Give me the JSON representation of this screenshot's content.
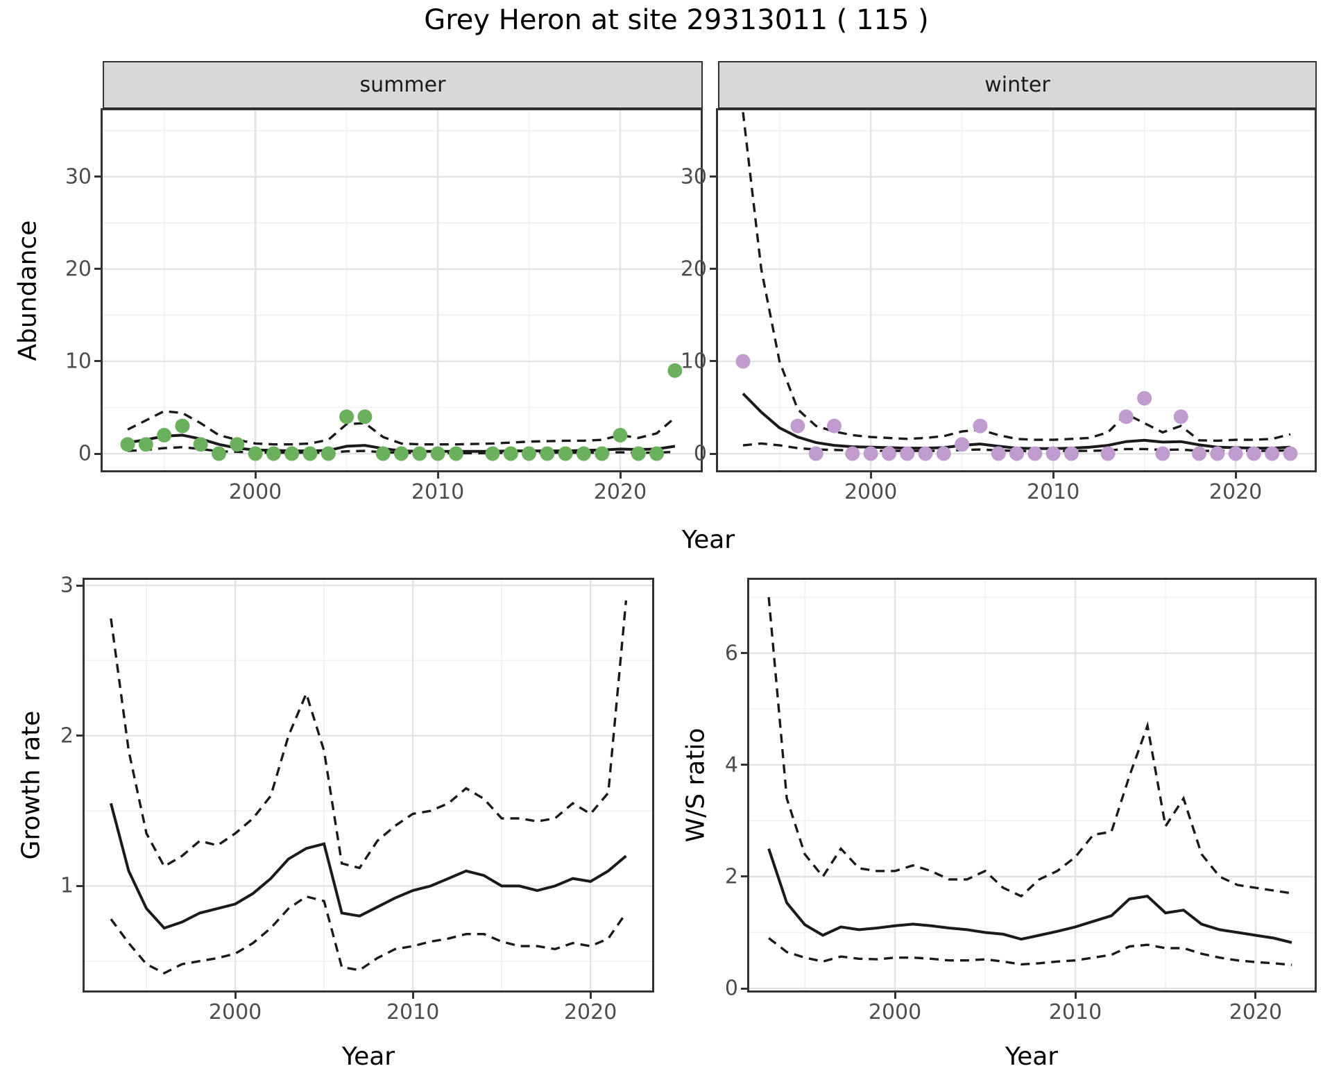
{
  "title": "Grey Heron at site 29313011 ( 115 )",
  "labels": {
    "abundance": "Abundance",
    "year": "Year",
    "growth_rate": "Growth rate",
    "ws_ratio": "W/S ratio"
  },
  "colors": {
    "summer_point": "#6BB05C",
    "winter_point": "#C09CCE",
    "line": "#1a1a1a",
    "grid_major": "#e3e3e3",
    "grid_minor": "#f0f0f0",
    "panel_border": "#333333",
    "strip_fill": "#d8d8d8",
    "tick_text": "#4d4d4d",
    "title_text": "#000000"
  },
  "chart_data": [
    {
      "type": "scatter+line",
      "facet_label": "summer",
      "ylabel": "Abundance",
      "xlabel": "Year",
      "years": {
        "from": 1993,
        "to": 2023
      },
      "xticks": [
        2000,
        2010,
        2020
      ],
      "xminor": [
        1995,
        2005,
        2015
      ],
      "yticks": [
        0,
        10,
        20,
        30
      ],
      "yminor": [
        5,
        15,
        25,
        35
      ],
      "xlim": [
        1991.63,
        2024.41
      ],
      "ylim": [
        -1.8,
        37.2
      ],
      "point_color_key": "summer_point",
      "series": {
        "observed_points": [
          1,
          1,
          2,
          3,
          1,
          0,
          1,
          0,
          0,
          0,
          0,
          0,
          4,
          4,
          0,
          0,
          0,
          0,
          0,
          null,
          0,
          0,
          0,
          0,
          0,
          0,
          0,
          2,
          0,
          0,
          9
        ],
        "fit": [
          1.2,
          1.5,
          1.9,
          2.0,
          1.6,
          1.0,
          0.6,
          0.4,
          0.35,
          0.3,
          0.3,
          0.35,
          0.8,
          0.9,
          0.55,
          0.3,
          0.25,
          0.25,
          0.25,
          0.25,
          0.25,
          0.3,
          0.3,
          0.3,
          0.3,
          0.35,
          0.4,
          0.5,
          0.45,
          0.5,
          0.8
        ],
        "upper": [
          2.6,
          3.6,
          4.6,
          4.4,
          3.3,
          2.0,
          1.5,
          1.1,
          1.0,
          1.0,
          1.1,
          1.5,
          3.2,
          3.3,
          1.8,
          1.1,
          1.0,
          1.0,
          1.0,
          1.05,
          1.1,
          1.2,
          1.3,
          1.35,
          1.4,
          1.4,
          1.5,
          2.0,
          1.7,
          2.2,
          3.9
        ],
        "lower": [
          0.3,
          0.4,
          0.6,
          0.7,
          0.5,
          0.25,
          0.2,
          0.1,
          0.1,
          0.1,
          0.1,
          0.1,
          0.25,
          0.3,
          0.15,
          0.1,
          0.05,
          0.05,
          0.05,
          0.05,
          0.05,
          0.1,
          0.1,
          0.1,
          0.1,
          0.1,
          0.1,
          0.15,
          0.1,
          0.1,
          0.2
        ]
      }
    },
    {
      "type": "scatter+line",
      "facet_label": "winter",
      "ylabel": "Abundance",
      "xlabel": "Year",
      "years": {
        "from": 1993,
        "to": 2023
      },
      "xticks": [
        2000,
        2010,
        2020
      ],
      "xminor": [
        1995,
        2005,
        2015
      ],
      "yticks": [
        0,
        10,
        20,
        30
      ],
      "yminor": [
        5,
        15,
        25,
        35
      ],
      "xlim": [
        1991.63,
        2024.33
      ],
      "ylim": [
        -1.8,
        37.2
      ],
      "point_color_key": "winter_point",
      "series": {
        "observed_points": [
          10,
          null,
          null,
          3,
          0,
          3,
          0,
          0,
          0,
          0,
          0,
          0,
          1,
          3,
          0,
          0,
          0,
          0,
          0,
          null,
          0,
          4,
          6,
          0,
          4,
          0,
          0,
          0,
          0,
          0,
          0
        ],
        "fit": [
          6.5,
          4.5,
          2.8,
          1.8,
          1.2,
          0.9,
          0.75,
          0.7,
          0.65,
          0.6,
          0.6,
          0.65,
          0.9,
          1.05,
          0.8,
          0.6,
          0.55,
          0.55,
          0.6,
          0.7,
          0.9,
          1.3,
          1.45,
          1.25,
          1.3,
          0.95,
          0.7,
          0.65,
          0.6,
          0.6,
          0.7
        ],
        "upper": [
          37,
          20,
          10,
          4.8,
          3.0,
          2.4,
          2.0,
          1.8,
          1.7,
          1.6,
          1.7,
          1.9,
          2.4,
          2.6,
          2.0,
          1.6,
          1.5,
          1.5,
          1.6,
          1.7,
          2.3,
          4.3,
          3.3,
          2.3,
          3.0,
          1.45,
          1.4,
          1.5,
          1.5,
          1.6,
          2.1
        ],
        "lower": [
          0.9,
          1.1,
          0.9,
          0.6,
          0.45,
          0.4,
          0.35,
          0.3,
          0.3,
          0.3,
          0.3,
          0.3,
          0.4,
          0.45,
          0.35,
          0.3,
          0.25,
          0.25,
          0.3,
          0.3,
          0.35,
          0.5,
          0.5,
          0.4,
          0.45,
          0.3,
          0.3,
          0.3,
          0.3,
          0.3,
          0.35
        ]
      }
    },
    {
      "type": "line",
      "facet_label": null,
      "ylabel": "Growth rate",
      "xlabel": "Year",
      "years": {
        "from": 1993,
        "to": 2022
      },
      "xticks": [
        2000,
        2010,
        2020
      ],
      "xminor": [
        1995,
        2005,
        2015
      ],
      "yticks": [
        1,
        2,
        3
      ],
      "yminor": [
        0.5,
        1.5,
        2.5
      ],
      "xlim": [
        1991.52,
        2023.47
      ],
      "ylim": [
        0.305,
        3.037
      ],
      "point_color_key": null,
      "series": {
        "fit": [
          1.55,
          1.1,
          0.85,
          0.72,
          0.76,
          0.82,
          0.85,
          0.88,
          0.95,
          1.05,
          1.18,
          1.25,
          1.28,
          0.82,
          0.8,
          0.86,
          0.92,
          0.97,
          1.0,
          1.05,
          1.1,
          1.07,
          1.0,
          1.0,
          0.97,
          1.0,
          1.05,
          1.03,
          1.1,
          1.2
        ],
        "upper": [
          2.78,
          1.9,
          1.35,
          1.13,
          1.2,
          1.3,
          1.27,
          1.35,
          1.45,
          1.6,
          2.0,
          2.28,
          1.9,
          1.15,
          1.12,
          1.3,
          1.4,
          1.48,
          1.5,
          1.55,
          1.65,
          1.58,
          1.45,
          1.45,
          1.43,
          1.45,
          1.55,
          1.48,
          1.62,
          2.9
        ],
        "lower": [
          0.78,
          0.62,
          0.48,
          0.42,
          0.48,
          0.5,
          0.52,
          0.55,
          0.62,
          0.72,
          0.85,
          0.93,
          0.9,
          0.46,
          0.44,
          0.52,
          0.58,
          0.6,
          0.63,
          0.65,
          0.68,
          0.68,
          0.63,
          0.6,
          0.6,
          0.58,
          0.62,
          0.6,
          0.65,
          0.82
        ]
      }
    },
    {
      "type": "line",
      "facet_label": null,
      "ylabel": "W/S ratio",
      "xlabel": "Year",
      "years": {
        "from": 1993,
        "to": 2022
      },
      "xticks": [
        2000,
        2010,
        2020
      ],
      "xminor": [
        1995,
        2005,
        2015
      ],
      "yticks": [
        0,
        2,
        4,
        6
      ],
      "yminor": [
        1,
        3,
        5,
        7
      ],
      "xlim": [
        1991.92,
        2023.27
      ],
      "ylim": [
        -0.037,
        7.31
      ],
      "point_color_key": null,
      "series": {
        "fit": [
          2.5,
          1.53,
          1.14,
          0.95,
          1.1,
          1.05,
          1.08,
          1.12,
          1.15,
          1.12,
          1.08,
          1.05,
          1.0,
          0.97,
          0.88,
          0.95,
          1.02,
          1.1,
          1.2,
          1.3,
          1.6,
          1.65,
          1.35,
          1.4,
          1.15,
          1.05,
          1.0,
          0.95,
          0.9,
          0.82
        ],
        "upper": [
          7.0,
          3.4,
          2.4,
          2.0,
          2.5,
          2.15,
          2.1,
          2.1,
          2.2,
          2.1,
          1.95,
          1.95,
          2.1,
          1.8,
          1.65,
          1.95,
          2.1,
          2.35,
          2.75,
          2.8,
          3.8,
          4.7,
          2.9,
          3.4,
          2.4,
          2.0,
          1.85,
          1.8,
          1.75,
          1.7
        ],
        "lower": [
          0.9,
          0.65,
          0.55,
          0.48,
          0.57,
          0.53,
          0.52,
          0.55,
          0.55,
          0.53,
          0.5,
          0.5,
          0.52,
          0.48,
          0.43,
          0.45,
          0.48,
          0.5,
          0.55,
          0.6,
          0.75,
          0.78,
          0.72,
          0.72,
          0.62,
          0.55,
          0.5,
          0.47,
          0.45,
          0.42
        ]
      }
    }
  ]
}
